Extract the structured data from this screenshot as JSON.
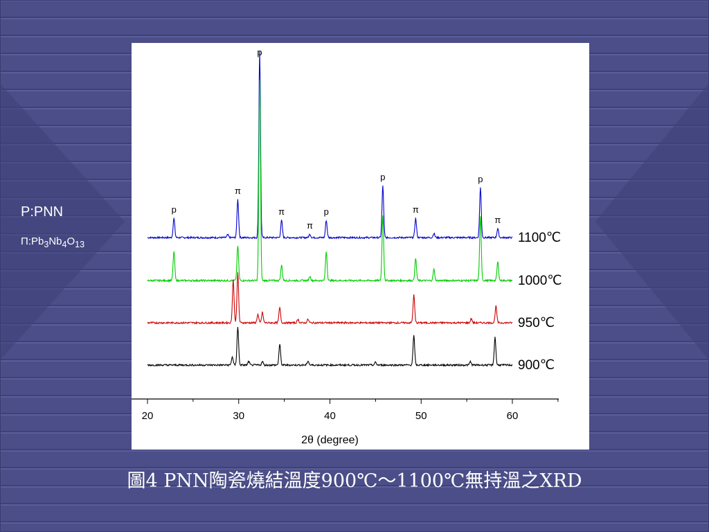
{
  "legend": {
    "p_label": "P:PNN",
    "pi_label": "Π:Pb3Nb4O13"
  },
  "caption": "圖4 PNN陶瓷燒結溫度900℃～1100℃無持溫之XRD",
  "chart_data": {
    "type": "line",
    "xlabel": "2θ (degree)",
    "ylabel": "",
    "xlim": [
      20,
      60
    ],
    "xticks": [
      20,
      30,
      40,
      50,
      60
    ],
    "grid": false,
    "series": [
      {
        "name": "1100℃",
        "color": "#0000cc",
        "baseline": 0,
        "peaks": [
          {
            "x": 22.9,
            "h": 0.28
          },
          {
            "x": 28.8,
            "h": 0.04
          },
          {
            "x": 29.9,
            "h": 0.55
          },
          {
            "x": 32.3,
            "h": 2.7
          },
          {
            "x": 34.7,
            "h": 0.25
          },
          {
            "x": 37.8,
            "h": 0.05
          },
          {
            "x": 39.6,
            "h": 0.25
          },
          {
            "x": 45.8,
            "h": 0.75
          },
          {
            "x": 49.4,
            "h": 0.28
          },
          {
            "x": 51.4,
            "h": 0.06
          },
          {
            "x": 56.5,
            "h": 0.72
          },
          {
            "x": 58.4,
            "h": 0.13
          }
        ]
      },
      {
        "name": "1000℃",
        "color": "#00cc00",
        "baseline": 0,
        "peaks": [
          {
            "x": 22.9,
            "h": 0.42
          },
          {
            "x": 29.9,
            "h": 0.5
          },
          {
            "x": 32.3,
            "h": 2.9
          },
          {
            "x": 34.7,
            "h": 0.22
          },
          {
            "x": 37.8,
            "h": 0.06
          },
          {
            "x": 39.6,
            "h": 0.42
          },
          {
            "x": 45.8,
            "h": 0.95
          },
          {
            "x": 49.4,
            "h": 0.32
          },
          {
            "x": 51.4,
            "h": 0.16
          },
          {
            "x": 56.5,
            "h": 0.92
          },
          {
            "x": 58.4,
            "h": 0.27
          }
        ]
      },
      {
        "name": "950℃",
        "color": "#cc0000",
        "baseline": 0,
        "peaks": [
          {
            "x": 29.4,
            "h": 0.62
          },
          {
            "x": 29.9,
            "h": 0.72
          },
          {
            "x": 32.1,
            "h": 0.12
          },
          {
            "x": 32.6,
            "h": 0.15
          },
          {
            "x": 34.5,
            "h": 0.22
          },
          {
            "x": 36.5,
            "h": 0.05
          },
          {
            "x": 37.6,
            "h": 0.05
          },
          {
            "x": 49.2,
            "h": 0.4
          },
          {
            "x": 55.5,
            "h": 0.06
          },
          {
            "x": 58.2,
            "h": 0.24
          }
        ]
      },
      {
        "name": "900℃",
        "color": "#000000",
        "baseline": 0,
        "peaks": [
          {
            "x": 29.3,
            "h": 0.12
          },
          {
            "x": 29.9,
            "h": 0.55
          },
          {
            "x": 31.1,
            "h": 0.05
          },
          {
            "x": 32.6,
            "h": 0.05
          },
          {
            "x": 34.5,
            "h": 0.3
          },
          {
            "x": 37.6,
            "h": 0.06
          },
          {
            "x": 45.0,
            "h": 0.04
          },
          {
            "x": 49.2,
            "h": 0.42
          },
          {
            "x": 55.4,
            "h": 0.05
          },
          {
            "x": 58.1,
            "h": 0.4
          }
        ]
      }
    ],
    "annotations": [
      {
        "text": "p",
        "x": 22.9,
        "series": 0
      },
      {
        "text": "π",
        "x": 29.9,
        "series": 0
      },
      {
        "text": "p",
        "x": 32.3,
        "series": 0
      },
      {
        "text": "π",
        "x": 34.7,
        "series": 0
      },
      {
        "text": "π",
        "x": 37.8,
        "series": 0
      },
      {
        "text": "p",
        "x": 39.6,
        "series": 0
      },
      {
        "text": "p",
        "x": 45.8,
        "series": 0
      },
      {
        "text": "π",
        "x": 49.4,
        "series": 0
      },
      {
        "text": "p",
        "x": 56.5,
        "series": 0
      },
      {
        "text": "π",
        "x": 58.4,
        "series": 0
      }
    ]
  }
}
